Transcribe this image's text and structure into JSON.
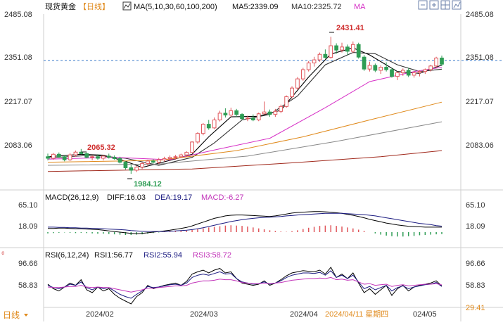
{
  "header": {
    "instrument": "现货黄金",
    "period_tag": "【日线】",
    "ma_label": "MA(5,10,30,60,100,200)",
    "ma5_label": "MA5:2339.09",
    "ma10_label": "MA10:2325.72",
    "ma_extra_label": "MA",
    "toolbar_icons": [
      "minus-icon",
      "plus-icon",
      "grid-icon",
      "chart-icon"
    ]
  },
  "colors": {
    "up": "#e0565b",
    "down": "#2f9d55",
    "ma5": "#000000",
    "ma10": "#333333",
    "ma30": "#d62fc6",
    "ma60": "#e08a1c",
    "ma100": "#888888",
    "ma200": "#a0281b",
    "diff": "#000000",
    "dea": "#1a1a80",
    "macd_label": "#c233b9",
    "price_line": "#3a78c8",
    "max_label": "#d03030",
    "min_label": "#2f9d55",
    "rsi1": "#000000",
    "rsi2": "#1a1a80",
    "rsi3": "#c233b9"
  },
  "chart_data": [
    {
      "type": "candlestick",
      "title": "现货黄金 日线",
      "y_ticks": [
        "2485.08",
        "2351.08",
        "2217.07",
        "2083.06"
      ],
      "ylim": [
        1950,
        2510
      ],
      "current_price_label": "2351.08",
      "annotations": {
        "high": "2431.41",
        "low": "1984.12",
        "local_high": "2065.32"
      },
      "ohlc": [
        [
          2040,
          2050,
          2028,
          2035
        ],
        [
          2035,
          2052,
          2030,
          2048
        ],
        [
          2048,
          2054,
          2036,
          2040
        ],
        [
          2040,
          2046,
          2025,
          2030
        ],
        [
          2030,
          2052,
          2026,
          2046
        ],
        [
          2046,
          2060,
          2040,
          2055
        ],
        [
          2055,
          2065.32,
          2048,
          2050
        ],
        [
          2050,
          2054,
          2035,
          2038
        ],
        [
          2038,
          2045,
          2028,
          2040
        ],
        [
          2040,
          2048,
          2030,
          2035
        ],
        [
          2035,
          2045,
          2028,
          2042
        ],
        [
          2042,
          2050,
          2034,
          2038
        ],
        [
          2038,
          2044,
          2030,
          2034
        ],
        [
          2034,
          2040,
          2018,
          2022
        ],
        [
          2022,
          2026,
          1998,
          2004
        ],
        [
          2004,
          2014,
          1984.12,
          1996
        ],
        [
          1996,
          2010,
          1990,
          2006
        ],
        [
          2006,
          2022,
          2000,
          2018
        ],
        [
          2018,
          2030,
          2010,
          2026
        ],
        [
          2026,
          2032,
          2018,
          2022
        ],
        [
          2022,
          2036,
          2016,
          2030
        ],
        [
          2030,
          2040,
          2024,
          2034
        ],
        [
          2034,
          2044,
          2026,
          2038
        ],
        [
          2038,
          2046,
          2030,
          2040
        ],
        [
          2040,
          2050,
          2036,
          2046
        ],
        [
          2046,
          2058,
          2040,
          2054
        ],
        [
          2054,
          2090,
          2052,
          2088
        ],
        [
          2088,
          2120,
          2082,
          2116
        ],
        [
          2116,
          2150,
          2110,
          2146
        ],
        [
          2146,
          2160,
          2128,
          2134
        ],
        [
          2134,
          2168,
          2130,
          2160
        ],
        [
          2160,
          2190,
          2155,
          2182
        ],
        [
          2182,
          2198,
          2168,
          2176
        ],
        [
          2176,
          2200,
          2170,
          2190
        ],
        [
          2190,
          2196,
          2170,
          2178
        ],
        [
          2178,
          2182,
          2160,
          2164
        ],
        [
          2164,
          2174,
          2156,
          2166
        ],
        [
          2166,
          2178,
          2156,
          2160
        ],
        [
          2160,
          2184,
          2156,
          2180
        ],
        [
          2180,
          2220,
          2178,
          2186
        ],
        [
          2186,
          2194,
          2170,
          2178
        ],
        [
          2178,
          2196,
          2170,
          2188
        ],
        [
          2188,
          2210,
          2182,
          2204
        ],
        [
          2204,
          2240,
          2200,
          2236
        ],
        [
          2236,
          2270,
          2230,
          2264
        ],
        [
          2264,
          2300,
          2258,
          2294
        ],
        [
          2294,
          2330,
          2288,
          2324
        ],
        [
          2324,
          2352,
          2318,
          2346
        ],
        [
          2346,
          2366,
          2334,
          2356
        ],
        [
          2356,
          2380,
          2350,
          2374
        ],
        [
          2374,
          2390,
          2360,
          2364
        ],
        [
          2364,
          2431.41,
          2360,
          2402
        ],
        [
          2402,
          2410,
          2376,
          2388
        ],
        [
          2388,
          2412,
          2380,
          2398
        ],
        [
          2398,
          2406,
          2372,
          2384
        ],
        [
          2384,
          2416,
          2378,
          2406
        ],
        [
          2406,
          2412,
          2360,
          2365
        ],
        [
          2365,
          2372,
          2320,
          2326
        ],
        [
          2326,
          2350,
          2318,
          2338
        ],
        [
          2338,
          2344,
          2316,
          2322
        ],
        [
          2322,
          2338,
          2310,
          2332
        ],
        [
          2332,
          2348,
          2318,
          2324
        ],
        [
          2324,
          2330,
          2298,
          2302
        ],
        [
          2302,
          2318,
          2290,
          2314
        ],
        [
          2314,
          2328,
          2304,
          2322
        ],
        [
          2322,
          2330,
          2300,
          2306
        ],
        [
          2306,
          2320,
          2298,
          2314
        ],
        [
          2314,
          2322,
          2302,
          2318
        ],
        [
          2318,
          2328,
          2310,
          2324
        ],
        [
          2324,
          2340,
          2318,
          2336
        ],
        [
          2336,
          2366,
          2330,
          2362
        ],
        [
          2362,
          2370,
          2336,
          2342
        ]
      ],
      "ma_series": [
        {
          "name": "MA5",
          "points": [
            [
              0,
              2040
            ],
            [
              6,
              2048
            ],
            [
              10,
              2045
            ],
            [
              14,
              2025
            ],
            [
              17,
              2005
            ],
            [
              22,
              2028
            ],
            [
              26,
              2048
            ],
            [
              29,
              2105
            ],
            [
              33,
              2170
            ],
            [
              38,
              2172
            ],
            [
              42,
              2192
            ],
            [
              47,
              2300
            ],
            [
              51,
              2375
            ],
            [
              55,
              2395
            ],
            [
              58,
              2372
            ],
            [
              63,
              2318
            ],
            [
              67,
              2312
            ],
            [
              71,
              2339.09
            ]
          ]
        },
        {
          "name": "MA10",
          "points": [
            [
              0,
              2036
            ],
            [
              8,
              2045
            ],
            [
              14,
              2035
            ],
            [
              20,
              2012
            ],
            [
              26,
              2038
            ],
            [
              30,
              2085
            ],
            [
              35,
              2160
            ],
            [
              40,
              2178
            ],
            [
              45,
              2238
            ],
            [
              50,
              2340
            ],
            [
              55,
              2380
            ],
            [
              59,
              2376
            ],
            [
              63,
              2340
            ],
            [
              67,
              2318
            ],
            [
              71,
              2325.72
            ]
          ]
        },
        {
          "name": "MA30",
          "points": [
            [
              0,
              2032
            ],
            [
              12,
              2038
            ],
            [
              22,
              2030
            ],
            [
              30,
              2062
            ],
            [
              40,
              2100
            ],
            [
              50,
              2200
            ],
            [
              58,
              2285
            ],
            [
              66,
              2318
            ],
            [
              71,
              2332
            ]
          ]
        },
        {
          "name": "MA60",
          "points": [
            [
              0,
              2022
            ],
            [
              20,
              2028
            ],
            [
              34,
              2060
            ],
            [
              46,
              2105
            ],
            [
              58,
              2160
            ],
            [
              71,
              2218
            ]
          ]
        },
        {
          "name": "MA100",
          "points": [
            [
              0,
              2012
            ],
            [
              20,
              2016
            ],
            [
              36,
              2042
            ],
            [
              52,
              2090
            ],
            [
              71,
              2154
            ]
          ]
        },
        {
          "name": "MA200",
          "points": [
            [
              0,
              1992
            ],
            [
              26,
              2000
            ],
            [
              44,
              2020
            ],
            [
              60,
              2040
            ],
            [
              71,
              2060
            ]
          ]
        }
      ]
    },
    {
      "type": "bar",
      "title": "MACD",
      "label": "MACD(26,12,9)",
      "diff_label": "DIFF:16.03",
      "dea_label": "DEA:19.17",
      "macd_label": "MACD:-6.27",
      "y_ticks": [
        "65.10",
        "18.09"
      ],
      "ylim": [
        -45,
        90
      ],
      "histogram": [
        -4,
        -3,
        -2,
        -1,
        -2,
        -3,
        -2,
        -3,
        -4,
        -5,
        -5,
        -6,
        -7,
        -8,
        -9,
        -9,
        -8,
        -7,
        -5,
        -3,
        -1,
        1,
        2,
        3,
        4,
        5,
        7,
        9,
        12,
        15,
        17,
        19,
        21,
        22,
        21,
        20,
        18,
        15,
        12,
        9,
        6,
        4,
        2,
        1,
        3,
        6,
        10,
        14,
        17,
        20,
        21,
        22,
        20,
        18,
        15,
        12,
        8,
        4,
        0,
        -4,
        -8,
        -11,
        -13,
        -14,
        -14,
        -13,
        -12,
        -10,
        -9,
        -8,
        -7,
        -6.27
      ],
      "diff": [
        12,
        12,
        13,
        13,
        12,
        11,
        11,
        10,
        9,
        8,
        6,
        4,
        2,
        0,
        -2,
        -4,
        -5,
        -4,
        -2,
        0,
        2,
        4,
        6,
        9,
        12,
        15,
        20,
        26,
        32,
        38,
        44,
        48,
        52,
        54,
        55,
        55,
        54,
        53,
        52,
        51,
        50,
        52,
        55,
        58,
        61,
        63,
        64,
        65,
        66,
        66,
        65,
        64,
        62,
        60,
        57,
        54,
        50,
        46,
        41,
        37,
        33,
        29,
        26,
        23,
        21,
        19,
        18,
        17,
        16,
        16,
        16,
        16.03
      ],
      "dea": [
        16,
        16,
        15,
        15,
        14,
        14,
        13,
        13,
        12,
        12,
        11,
        10,
        9,
        8,
        7,
        5,
        4,
        3,
        2,
        2,
        2,
        2,
        3,
        4,
        5,
        6,
        8,
        11,
        14,
        18,
        22,
        26,
        30,
        34,
        37,
        40,
        42,
        44,
        46,
        47,
        48,
        49,
        50,
        52,
        53,
        55,
        56,
        57,
        58,
        59,
        60,
        60,
        60,
        60,
        59,
        58,
        57,
        56,
        54,
        52,
        49,
        46,
        43,
        40,
        37,
        34,
        31,
        28,
        26,
        24,
        21,
        19.17
      ]
    },
    {
      "type": "line",
      "title": "RSI",
      "label": "RSI(6,12,24)",
      "series": [
        {
          "name": "RSI1",
          "label": "RSI1:56.77",
          "values": [
            60,
            52,
            48,
            55,
            62,
            58,
            68,
            50,
            45,
            55,
            48,
            52,
            42,
            35,
            30,
            25,
            38,
            45,
            58,
            52,
            55,
            58,
            60,
            62,
            58,
            65,
            78,
            82,
            85,
            80,
            85,
            88,
            80,
            82,
            70,
            62,
            60,
            58,
            60,
            66,
            58,
            62,
            68,
            75,
            80,
            82,
            84,
            83,
            82,
            85,
            78,
            90,
            72,
            78,
            70,
            80,
            62,
            45,
            52,
            42,
            50,
            58,
            40,
            52,
            58,
            48,
            55,
            58,
            60,
            62,
            66,
            56.77
          ]
        },
        {
          "name": "RSI2",
          "label": "RSI2:55.94",
          "values": [
            58,
            54,
            52,
            55,
            60,
            58,
            64,
            54,
            50,
            55,
            52,
            54,
            48,
            42,
            38,
            35,
            42,
            48,
            56,
            54,
            55,
            57,
            59,
            60,
            58,
            62,
            72,
            76,
            78,
            76,
            79,
            82,
            78,
            79,
            70,
            64,
            62,
            60,
            61,
            64,
            60,
            62,
            66,
            72,
            76,
            78,
            80,
            80,
            79,
            81,
            76,
            84,
            72,
            76,
            70,
            76,
            64,
            52,
            56,
            50,
            54,
            58,
            48,
            54,
            57,
            52,
            55,
            57,
            59,
            60,
            63,
            55.94
          ]
        },
        {
          "name": "RSI3",
          "label": "RSI3:58.72",
          "values": [
            55,
            54,
            54,
            55,
            56,
            56,
            58,
            55,
            54,
            55,
            54,
            54,
            52,
            50,
            48,
            46,
            48,
            50,
            53,
            53,
            54,
            55,
            56,
            57,
            57,
            58,
            62,
            64,
            66,
            66,
            67,
            69,
            68,
            68,
            66,
            63,
            62,
            61,
            61,
            62,
            61,
            62,
            63,
            65,
            67,
            68,
            69,
            70,
            70,
            71,
            70,
            72,
            68,
            69,
            67,
            68,
            64,
            60,
            61,
            58,
            59,
            60,
            56,
            58,
            59,
            57,
            58,
            59,
            60,
            60,
            61,
            58.72
          ]
        }
      ],
      "y_ticks": [
        "96.66",
        "58.83",
        "29.41"
      ],
      "ylim": [
        20,
        105
      ]
    }
  ],
  "xaxis": {
    "labels": [
      "2024/02",
      "2024/03",
      "2024/04",
      "024/05"
    ],
    "highlight_label": "2024/04/11 星期四"
  },
  "footer": {
    "period_button": "日线",
    "corner_mark": "₀"
  }
}
